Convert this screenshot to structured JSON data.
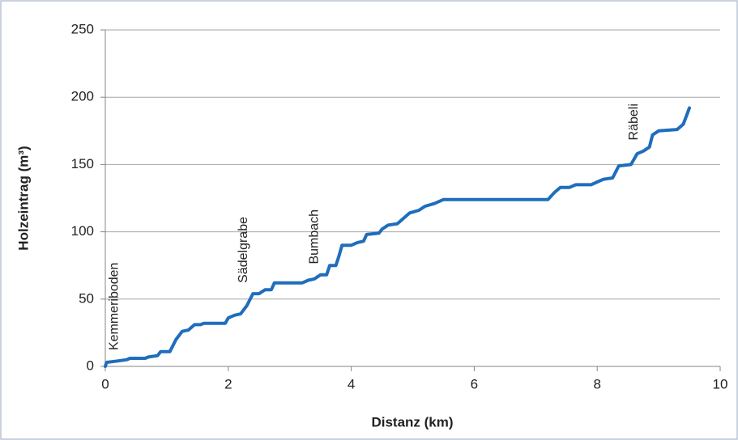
{
  "chart_data": {
    "type": "line",
    "xlabel": "Distanz (km)",
    "ylabel": "Holzeintrag (m³)",
    "x": [
      0,
      0.02,
      0.2,
      0.35,
      0.4,
      0.65,
      0.7,
      0.85,
      0.9,
      1.05,
      1.15,
      1.25,
      1.35,
      1.45,
      1.55,
      1.6,
      1.95,
      2.0,
      2.1,
      2.2,
      2.3,
      2.4,
      2.5,
      2.6,
      2.7,
      2.75,
      3.2,
      3.3,
      3.4,
      3.5,
      3.6,
      3.65,
      3.75,
      3.8,
      3.85,
      4.0,
      4.1,
      4.2,
      4.25,
      4.45,
      4.5,
      4.6,
      4.75,
      4.95,
      5.1,
      5.2,
      5.35,
      5.5,
      7.2,
      7.3,
      7.4,
      7.55,
      7.65,
      7.9,
      8.0,
      8.1,
      8.25,
      8.35,
      8.55,
      8.65,
      8.75,
      8.85,
      8.9,
      9.0,
      9.3,
      9.4,
      9.5
    ],
    "values": [
      0,
      3,
      4,
      5,
      6,
      6,
      7,
      8,
      11,
      11,
      20,
      26,
      27,
      31,
      31,
      32,
      32,
      36,
      38,
      39,
      45,
      54,
      54,
      57,
      57,
      62,
      62,
      64,
      65,
      68,
      68,
      75,
      75,
      82,
      90,
      90,
      92,
      93,
      98,
      99,
      102,
      105,
      106,
      114,
      116,
      119,
      121,
      124,
      124,
      129,
      133,
      133,
      135,
      135,
      137,
      139,
      140,
      149,
      150,
      158,
      160,
      163,
      172,
      175,
      176,
      180,
      192
    ],
    "color": "#1f6dbd",
    "xlim": [
      0,
      10
    ],
    "xticks": [
      0,
      2,
      4,
      6,
      8,
      10
    ],
    "ylim": [
      0,
      250
    ],
    "yticks": [
      0,
      50,
      100,
      150,
      200,
      250
    ],
    "grid": true,
    "annotations": [
      {
        "text": "Kemmeriboden",
        "x": 0.15,
        "y": 12
      },
      {
        "text": "Sädelgrabe",
        "x": 2.25,
        "y": 62
      },
      {
        "text": "Bumbach",
        "x": 3.4,
        "y": 76
      },
      {
        "text": "Räbeli",
        "x": 8.6,
        "y": 168
      }
    ]
  }
}
